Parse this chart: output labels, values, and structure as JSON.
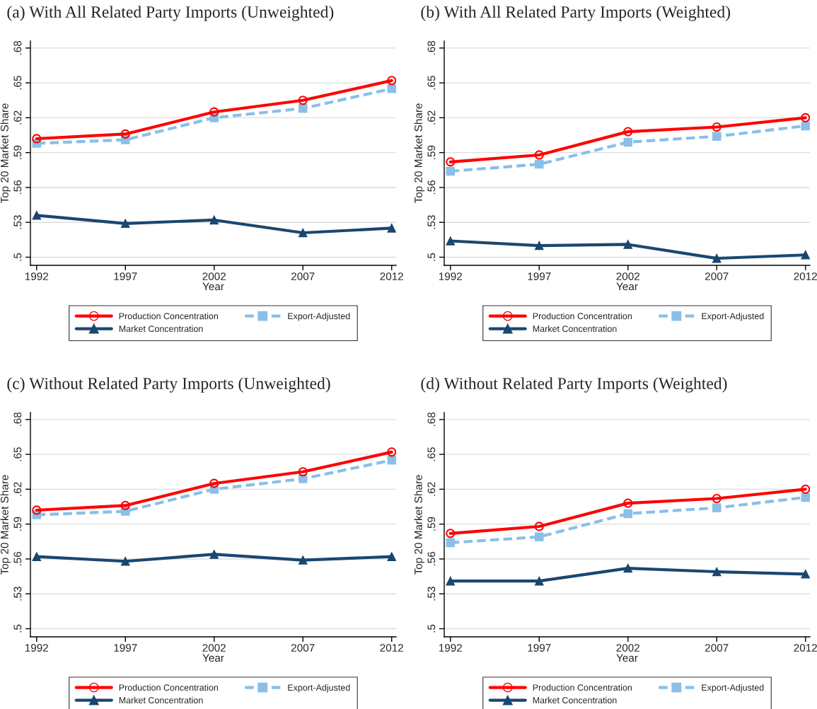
{
  "chart_data": [
    {
      "type": "line",
      "title": "(a) With All Related Party Imports (Unweighted)",
      "xlabel": "Year",
      "ylabel": "Top 20 Market Share",
      "x": [
        1992,
        1997,
        2002,
        2007,
        2012
      ],
      "xlim": [
        1991.65,
        2012.25
      ],
      "xticks": [
        1992,
        1997,
        2002,
        2007,
        2012
      ],
      "ylim": [
        0.493,
        0.686
      ],
      "yticks": [
        {
          "value": 0.5,
          "label": ".5"
        },
        {
          "value": 0.53,
          "label": ".53"
        },
        {
          "value": 0.56,
          "label": ".56"
        },
        {
          "value": 0.59,
          "label": ".59"
        },
        {
          "value": 0.62,
          "label": ".62"
        },
        {
          "value": 0.65,
          "label": ".65"
        },
        {
          "value": 0.68,
          "label": ".68"
        }
      ],
      "grid": "y",
      "legend": "bottom",
      "series": [
        {
          "name": "Production Concentration",
          "color": "#ff0000",
          "marker": "circle",
          "line_style": "solid",
          "values": [
            0.602,
            0.606,
            0.625,
            0.635,
            0.652
          ]
        },
        {
          "name": "Export-Adjusted",
          "color": "#89bfe8",
          "marker": "square",
          "line_style": "dashed",
          "values": [
            0.598,
            0.601,
            0.62,
            0.628,
            0.645
          ]
        },
        {
          "name": "Market Concentration",
          "color": "#1a476f",
          "marker": "triangle",
          "line_style": "solid",
          "values": [
            0.536,
            0.529,
            0.532,
            0.521,
            0.525
          ]
        }
      ]
    },
    {
      "type": "line",
      "title": "(b) With All Related Party Imports (Weighted)",
      "xlabel": "Year",
      "ylabel": "Top 20 Market Share",
      "x": [
        1992,
        1997,
        2002,
        2007,
        2012
      ],
      "xlim": [
        1991.65,
        2012.25
      ],
      "xticks": [
        1992,
        1997,
        2002,
        2007,
        2012
      ],
      "ylim": [
        0.493,
        0.686
      ],
      "yticks": [
        {
          "value": 0.5,
          "label": ".5"
        },
        {
          "value": 0.53,
          "label": ".53"
        },
        {
          "value": 0.56,
          "label": ".56"
        },
        {
          "value": 0.59,
          "label": ".59"
        },
        {
          "value": 0.62,
          "label": ".62"
        },
        {
          "value": 0.65,
          "label": ".65"
        },
        {
          "value": 0.68,
          "label": ".68"
        }
      ],
      "grid": "y",
      "legend": "bottom",
      "series": [
        {
          "name": "Production Concentration",
          "color": "#ff0000",
          "marker": "circle",
          "line_style": "solid",
          "values": [
            0.582,
            0.588,
            0.608,
            0.612,
            0.62
          ]
        },
        {
          "name": "Export-Adjusted",
          "color": "#89bfe8",
          "marker": "square",
          "line_style": "dashed",
          "values": [
            0.574,
            0.58,
            0.599,
            0.604,
            0.613
          ]
        },
        {
          "name": "Market Concentration",
          "color": "#1a476f",
          "marker": "triangle",
          "line_style": "solid",
          "values": [
            0.514,
            0.51,
            0.511,
            0.499,
            0.502
          ]
        }
      ]
    },
    {
      "type": "line",
      "title": "(c) Without Related Party Imports (Unweighted)",
      "xlabel": "Year",
      "ylabel": "Top 20 Market Share",
      "x": [
        1992,
        1997,
        2002,
        2007,
        2012
      ],
      "xlim": [
        1991.65,
        2012.25
      ],
      "xticks": [
        1992,
        1997,
        2002,
        2007,
        2012
      ],
      "ylim": [
        0.493,
        0.686
      ],
      "yticks": [
        {
          "value": 0.5,
          "label": ".5"
        },
        {
          "value": 0.53,
          "label": ".53"
        },
        {
          "value": 0.56,
          "label": ".56"
        },
        {
          "value": 0.59,
          "label": ".59"
        },
        {
          "value": 0.62,
          "label": ".62"
        },
        {
          "value": 0.65,
          "label": ".65"
        },
        {
          "value": 0.68,
          "label": ".68"
        }
      ],
      "grid": "y",
      "legend": "bottom",
      "series": [
        {
          "name": "Production Concentration",
          "color": "#ff0000",
          "marker": "circle",
          "line_style": "solid",
          "values": [
            0.602,
            0.606,
            0.625,
            0.635,
            0.652
          ]
        },
        {
          "name": "Export-Adjusted",
          "color": "#89bfe8",
          "marker": "square",
          "line_style": "dashed",
          "values": [
            0.598,
            0.601,
            0.62,
            0.629,
            0.645
          ]
        },
        {
          "name": "Market Concentration",
          "color": "#1a476f",
          "marker": "triangle",
          "line_style": "solid",
          "values": [
            0.562,
            0.558,
            0.564,
            0.559,
            0.562
          ]
        }
      ]
    },
    {
      "type": "line",
      "title": "(d) Without Related Party Imports (Weighted)",
      "xlabel": "Year",
      "ylabel": "Top 20 Market Share",
      "x": [
        1992,
        1997,
        2002,
        2007,
        2012
      ],
      "xlim": [
        1991.65,
        2012.25
      ],
      "xticks": [
        1992,
        1997,
        2002,
        2007,
        2012
      ],
      "ylim": [
        0.493,
        0.686
      ],
      "yticks": [
        {
          "value": 0.5,
          "label": ".5"
        },
        {
          "value": 0.53,
          "label": ".53"
        },
        {
          "value": 0.56,
          "label": ".56"
        },
        {
          "value": 0.59,
          "label": ".59"
        },
        {
          "value": 0.62,
          "label": ".62"
        },
        {
          "value": 0.65,
          "label": ".65"
        },
        {
          "value": 0.68,
          "label": ".68"
        }
      ],
      "grid": "y",
      "legend": "bottom",
      "series": [
        {
          "name": "Production Concentration",
          "color": "#ff0000",
          "marker": "circle",
          "line_style": "solid",
          "values": [
            0.582,
            0.588,
            0.608,
            0.612,
            0.62
          ]
        },
        {
          "name": "Export-Adjusted",
          "color": "#89bfe8",
          "marker": "square",
          "line_style": "dashed",
          "values": [
            0.574,
            0.579,
            0.599,
            0.604,
            0.613
          ]
        },
        {
          "name": "Market Concentration",
          "color": "#1a476f",
          "marker": "triangle",
          "line_style": "solid",
          "values": [
            0.541,
            0.541,
            0.552,
            0.549,
            0.547
          ]
        }
      ]
    }
  ]
}
